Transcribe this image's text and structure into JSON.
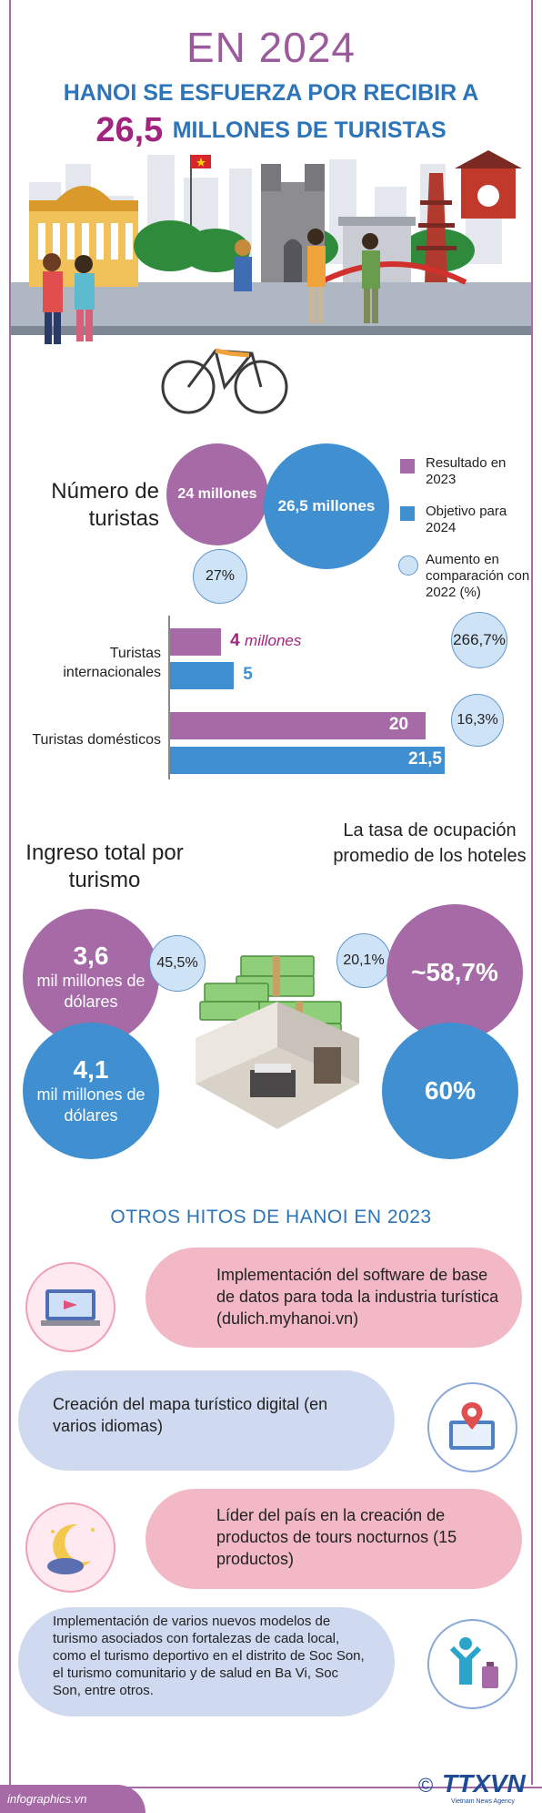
{
  "header": {
    "year_title": "EN 2024",
    "subtitle": "HANOI SE ESFUERZA POR RECIBIR A",
    "target_number": "26,5",
    "target_label": "MILLONES DE TURISTAS"
  },
  "tourists": {
    "heading": "Número de turistas",
    "result_2023": "24 millones",
    "goal_2024": "26,5 millones",
    "increase": "27%",
    "legend": {
      "result": "Resultado en 2023",
      "goal": "Objetivo para 2024",
      "increase": "Aumento en comparación con 2022 (%)"
    }
  },
  "bars": {
    "international": {
      "label": "Turistas internacionales",
      "result_value": "4",
      "result_unit": "millones",
      "goal_value": "5",
      "increase": "266,7%",
      "result_num": 4,
      "goal_num": 5
    },
    "domestic": {
      "label": "Turistas domésticos",
      "result_value": "20",
      "goal_value": "21,5",
      "increase": "16,3%",
      "result_num": 20,
      "goal_num": 21.5
    }
  },
  "revenue": {
    "heading": "Ingreso total por turismo",
    "result_value": "3,6",
    "result_unit": "mil millones de dólares",
    "goal_value": "4,1",
    "goal_unit": "mil millones de dólares",
    "increase": "45,5%"
  },
  "hotels": {
    "heading": "La tasa de ocupación promedio de los hoteles",
    "result": "~58,7%",
    "goal": "60%",
    "increase": "20,1%"
  },
  "milestones": {
    "heading": "OTROS HITOS DE HANOI EN 2023",
    "items": [
      "Implementación del software de base de datos para toda la industria turística (dulich.myhanoi.vn)",
      "Creación del mapa turístico digital (en varios idiomas)",
      "Líder del país en la creación de productos de tours nocturnos (15 productos)",
      "Implementación de varios nuevos modelos de turismo asociados con fortalezas de cada local, como el turismo deportivo en el distrito de Soc Son, el turismo comunitario y de salud en Ba Vi, Soc Son, entre otros."
    ]
  },
  "footer": {
    "site": "infographics.vn",
    "logo_text": "TTXVN",
    "copyright": "©",
    "agency": "Vietnam News Agency"
  },
  "colors": {
    "purple": "#a66aa6",
    "blue": "#3f8fd1",
    "magenta": "#a1247f",
    "pink": "#f3b8c6",
    "lavender": "#cfd9ef"
  }
}
